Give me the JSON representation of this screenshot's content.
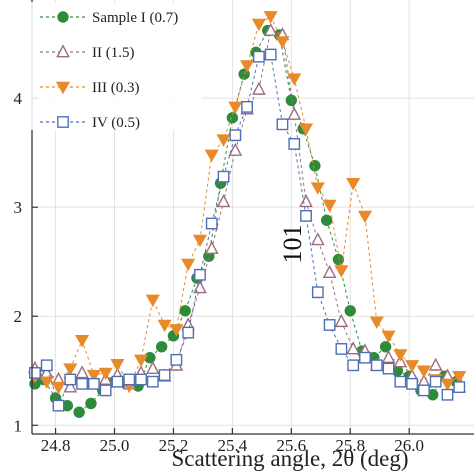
{
  "chart_data": {
    "type": "scatter",
    "xlabel": "Scattering angle, 2θ (deg)",
    "ylabel": "",
    "xlim": [
      24.72,
      26.22
    ],
    "ylim": [
      0.92,
      4.9
    ],
    "x_ticks": [
      "24.8",
      "25.0",
      "25.2",
      "25.4",
      "25.6",
      "25.8",
      "26.0"
    ],
    "x_tick_values": [
      24.8,
      25.0,
      25.2,
      25.4,
      25.6,
      25.8,
      26.0
    ],
    "y_ticks": [
      "1",
      "2",
      "3",
      "4"
    ],
    "y_tick_values": [
      1,
      2,
      3,
      4
    ],
    "grid": true,
    "legend_position": "top-left",
    "annotation": "101",
    "series": [
      {
        "name": "Sample I (0.7)",
        "marker": "filled-circle",
        "color": "#2e8b3a",
        "x": [
          24.73,
          24.76,
          24.8,
          24.84,
          24.88,
          24.92,
          24.96,
          25.0,
          25.04,
          25.08,
          25.12,
          25.16,
          25.2,
          25.24,
          25.28,
          25.32,
          25.36,
          25.4,
          25.44,
          25.48,
          25.52,
          25.56,
          25.6,
          25.64,
          25.68,
          25.72,
          25.76,
          25.8,
          25.84,
          25.88,
          25.92,
          25.96,
          26.0,
          26.04,
          26.08,
          26.12,
          26.16
        ],
        "y": [
          1.38,
          1.42,
          1.25,
          1.18,
          1.12,
          1.2,
          1.32,
          1.4,
          1.38,
          1.36,
          1.62,
          1.72,
          1.82,
          2.05,
          2.35,
          2.55,
          3.22,
          3.82,
          4.22,
          4.42,
          4.62,
          4.58,
          3.98,
          3.72,
          3.38,
          2.88,
          2.52,
          2.05,
          1.68,
          1.62,
          1.72,
          1.5,
          1.45,
          1.32,
          1.28,
          1.45,
          1.4
        ]
      },
      {
        "name": "II (1.5)",
        "marker": "open-triangle-up",
        "color": "#9a6f7d",
        "x": [
          24.73,
          24.77,
          24.81,
          24.85,
          24.89,
          24.93,
          24.97,
          25.01,
          25.05,
          25.09,
          25.13,
          25.17,
          25.21,
          25.25,
          25.29,
          25.33,
          25.37,
          25.41,
          25.45,
          25.49,
          25.53,
          25.57,
          25.61,
          25.65,
          25.69,
          25.73,
          25.77,
          25.81,
          25.85,
          25.89,
          25.93,
          25.97,
          26.01,
          26.05,
          26.09,
          26.13,
          26.17
        ],
        "y": [
          1.52,
          1.48,
          1.42,
          1.35,
          1.48,
          1.38,
          1.42,
          1.46,
          1.38,
          1.48,
          1.52,
          1.45,
          1.55,
          1.92,
          2.26,
          2.62,
          3.05,
          3.52,
          3.9,
          4.08,
          4.62,
          4.58,
          3.85,
          3.05,
          2.7,
          2.4,
          1.95,
          1.7,
          1.68,
          1.55,
          1.62,
          1.58,
          1.45,
          1.4,
          1.55,
          1.45,
          1.35
        ]
      },
      {
        "name": "III (0.3)",
        "marker": "filled-triangle-down",
        "color": "#e88a2a",
        "x": [
          24.73,
          24.77,
          24.81,
          24.85,
          24.89,
          24.93,
          24.97,
          25.01,
          25.05,
          25.09,
          25.13,
          25.17,
          25.21,
          25.25,
          25.29,
          25.33,
          25.37,
          25.41,
          25.45,
          25.49,
          25.53,
          25.57,
          25.61,
          25.65,
          25.69,
          25.73,
          25.77,
          25.81,
          25.85,
          25.89,
          25.93,
          25.97,
          26.01,
          26.05,
          26.09,
          26.13,
          26.17
        ],
        "y": [
          1.45,
          1.4,
          1.35,
          1.52,
          1.78,
          1.46,
          1.48,
          1.56,
          1.36,
          1.6,
          2.15,
          1.92,
          1.88,
          2.48,
          2.7,
          3.48,
          3.62,
          3.92,
          4.3,
          4.68,
          4.75,
          4.52,
          4.18,
          3.72,
          3.18,
          3.02,
          2.42,
          3.22,
          2.92,
          1.95,
          1.82,
          1.65,
          1.55,
          1.5,
          1.42,
          1.38,
          1.45
        ]
      },
      {
        "name": "IV (0.5)",
        "marker": "open-square",
        "color": "#4e6fb5",
        "x": [
          24.73,
          24.77,
          24.81,
          24.85,
          24.89,
          24.93,
          24.97,
          25.01,
          25.05,
          25.09,
          25.13,
          25.17,
          25.21,
          25.25,
          25.29,
          25.33,
          25.37,
          25.41,
          25.45,
          25.49,
          25.53,
          25.57,
          25.61,
          25.65,
          25.69,
          25.73,
          25.77,
          25.81,
          25.85,
          25.89,
          25.93,
          25.97,
          26.01,
          26.05,
          26.09,
          26.13,
          26.17
        ],
        "y": [
          1.48,
          1.55,
          1.18,
          1.42,
          1.38,
          1.38,
          1.32,
          1.4,
          1.42,
          1.42,
          1.4,
          1.46,
          1.6,
          1.85,
          2.38,
          2.85,
          3.28,
          3.66,
          3.92,
          4.38,
          4.4,
          3.76,
          3.58,
          2.92,
          2.22,
          1.92,
          1.7,
          1.55,
          1.62,
          1.55,
          1.52,
          1.4,
          1.38,
          1.32,
          1.4,
          1.28,
          1.35
        ]
      }
    ]
  }
}
